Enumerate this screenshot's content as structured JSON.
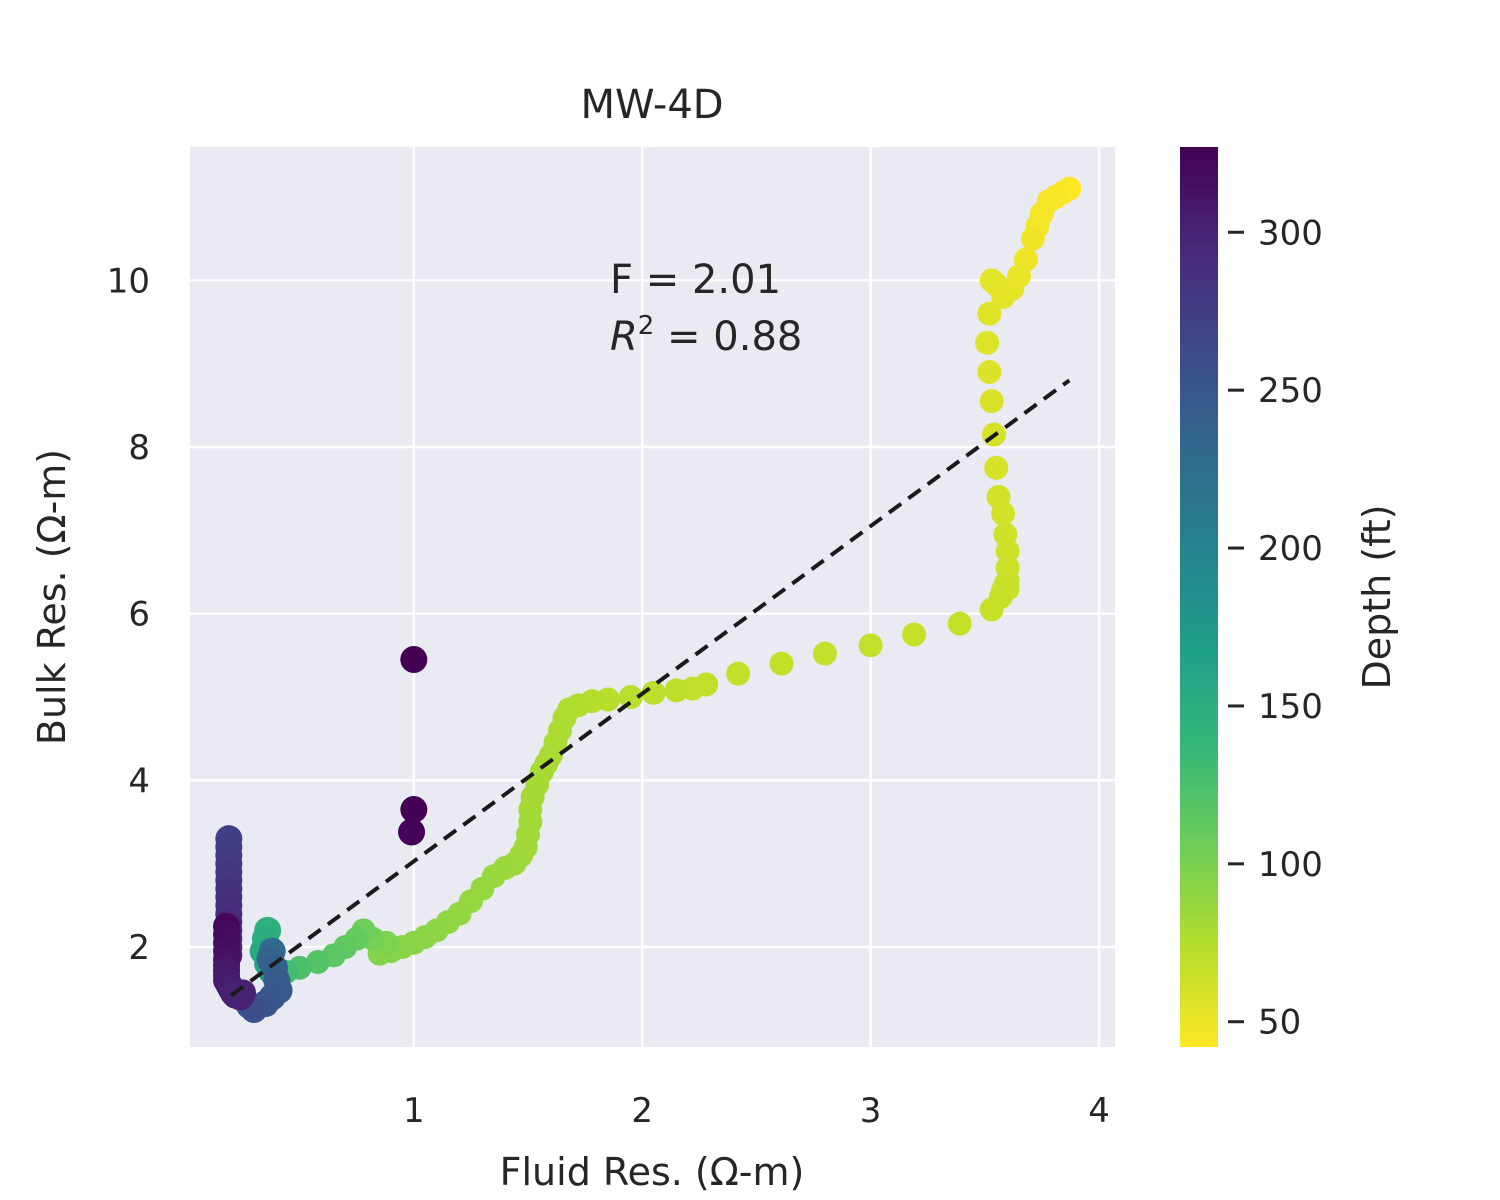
{
  "chart_data": {
    "type": "scatter",
    "title": "MW-4D",
    "xlabel": "Fluid Res.  (Ω-m)",
    "ylabel": "Bulk Res. (Ω-m)",
    "xlim": [
      0.02,
      4.07
    ],
    "ylim": [
      0.8,
      11.6
    ],
    "xticks": [
      1,
      2,
      3,
      4
    ],
    "yticks": [
      2,
      4,
      6,
      8,
      10
    ],
    "grid": true,
    "annotation": {
      "F": "F = 2.01",
      "R2_value": " = 0.88"
    },
    "fit_line": {
      "x": [
        0.2,
        3.87
      ],
      "y": [
        1.42,
        8.8
      ],
      "style": "dashed",
      "color": "#1a1a1a"
    },
    "colorbar": {
      "label": "Depth (ft)",
      "ticks": [
        50,
        100,
        150,
        200,
        250,
        300
      ],
      "range": [
        42,
        327
      ],
      "colormap": "viridis",
      "stops": [
        "#440154",
        "#482878",
        "#3e4989",
        "#31688e",
        "#26828e",
        "#1f9e89",
        "#35b779",
        "#6ece58",
        "#b5de2b",
        "#fde725"
      ]
    },
    "series": [
      {
        "x": [
          3.87,
          3.84,
          3.81,
          3.78,
          3.75,
          3.73,
          3.71,
          3.68,
          3.65,
          3.62,
          3.58,
          3.55,
          3.53,
          3.52,
          3.51,
          3.52,
          3.53,
          3.54,
          3.55,
          3.56,
          3.58,
          3.59,
          3.6,
          3.6,
          3.6,
          3.6,
          3.59,
          3.58,
          3.57,
          3.53,
          3.39,
          3.19,
          3.0,
          2.8,
          2.61,
          2.42,
          2.28,
          2.22
        ],
        "y": [
          11.1,
          11.05,
          11.0,
          10.95,
          10.8,
          10.65,
          10.5,
          10.25,
          10.05,
          9.9,
          9.8,
          9.95,
          10.0,
          9.6,
          9.25,
          8.9,
          8.55,
          8.15,
          7.75,
          7.4,
          7.2,
          6.95,
          6.75,
          6.55,
          6.4,
          6.3,
          6.35,
          6.28,
          6.2,
          6.05,
          5.88,
          5.75,
          5.62,
          5.52,
          5.4,
          5.28,
          5.15,
          5.1
        ],
        "depth": [
          42,
          43,
          44,
          45,
          46,
          47,
          48,
          49,
          50,
          51,
          52,
          53,
          54,
          55,
          56,
          57,
          58,
          59,
          60,
          61,
          61,
          62,
          62,
          63,
          63,
          64,
          64,
          64,
          65,
          65,
          66,
          66,
          67,
          67,
          68,
          68,
          69,
          69
        ]
      },
      {
        "x": [
          2.15,
          2.05,
          1.95,
          1.85,
          1.78,
          1.72,
          1.68,
          1.66,
          1.64,
          1.62,
          1.6,
          1.58,
          1.56,
          1.54,
          1.52,
          1.51,
          1.51,
          1.5,
          1.49,
          1.47,
          1.44,
          1.4,
          1.35,
          1.3,
          1.25,
          1.2,
          1.15,
          1.1,
          1.05,
          1.0,
          0.95,
          0.9,
          0.85
        ],
        "y": [
          5.08,
          5.05,
          5.0,
          4.97,
          4.95,
          4.9,
          4.85,
          4.75,
          4.6,
          4.45,
          4.3,
          4.2,
          4.1,
          3.95,
          3.8,
          3.65,
          3.5,
          3.35,
          3.2,
          3.1,
          3.0,
          2.95,
          2.85,
          2.7,
          2.55,
          2.4,
          2.3,
          2.2,
          2.12,
          2.05,
          2.0,
          1.95,
          1.92
        ],
        "depth": [
          70,
          71,
          72,
          73,
          74,
          75,
          76,
          77,
          78,
          78,
          79,
          79,
          80,
          80,
          81,
          81,
          82,
          82,
          83,
          83,
          84,
          85,
          86,
          87,
          88,
          89,
          90,
          91,
          92,
          93,
          94,
          95,
          96
        ]
      },
      {
        "x": [
          0.88,
          0.82,
          0.78,
          0.75,
          0.7,
          0.65,
          0.58,
          0.5,
          0.44
        ],
        "y": [
          2.05,
          2.1,
          2.2,
          2.1,
          2.0,
          1.9,
          1.82,
          1.75,
          1.7
        ],
        "depth": [
          98,
          102,
          106,
          110,
          113,
          116,
          120,
          125,
          130
        ]
      },
      {
        "x": [
          0.36,
          0.35,
          0.34,
          0.36,
          0.38
        ],
        "y": [
          2.2,
          2.1,
          1.95,
          1.8,
          1.7
        ],
        "depth": [
          145,
          150,
          155,
          160,
          165
        ]
      },
      {
        "x": [
          0.38,
          0.37,
          0.39,
          0.4,
          0.41,
          0.38,
          0.35,
          0.3,
          0.28
        ],
        "y": [
          1.95,
          1.85,
          1.75,
          1.6,
          1.48,
          1.4,
          1.32,
          1.25,
          1.3
        ],
        "depth": [
          230,
          236,
          240,
          244,
          246,
          248,
          250,
          255,
          258
        ]
      },
      {
        "x": [
          0.19,
          0.19,
          0.19,
          0.19,
          0.19,
          0.19,
          0.19,
          0.19,
          0.19,
          0.19,
          0.19,
          0.19,
          0.19,
          0.19,
          0.19
        ],
        "y": [
          3.3,
          3.2,
          3.1,
          3.0,
          2.9,
          2.8,
          2.7,
          2.6,
          2.5,
          2.4,
          2.3,
          2.2,
          2.1,
          2.0,
          1.9
        ],
        "depth": [
          272,
          274,
          276,
          278,
          280,
          282,
          284,
          286,
          288,
          290,
          292,
          294,
          296,
          298,
          300
        ]
      },
      {
        "x": [
          0.18,
          0.18,
          0.18,
          0.18,
          0.18,
          0.18,
          0.18,
          0.18,
          0.18,
          0.19,
          0.2,
          0.21,
          0.22,
          0.24,
          0.25
        ],
        "y": [
          2.25,
          2.15,
          2.05,
          1.95,
          1.85,
          1.78,
          1.72,
          1.66,
          1.6,
          1.55,
          1.5,
          1.45,
          1.42,
          1.4,
          1.45
        ],
        "depth": [
          322,
          320,
          318,
          316,
          314,
          312,
          310,
          308,
          306,
          305,
          304,
          303,
          302,
          301,
          300
        ]
      },
      {
        "x": [
          1.0,
          1.0,
          0.99
        ],
        "y": [
          5.45,
          3.65,
          3.38
        ],
        "depth": [
          327,
          326,
          325
        ]
      }
    ]
  }
}
